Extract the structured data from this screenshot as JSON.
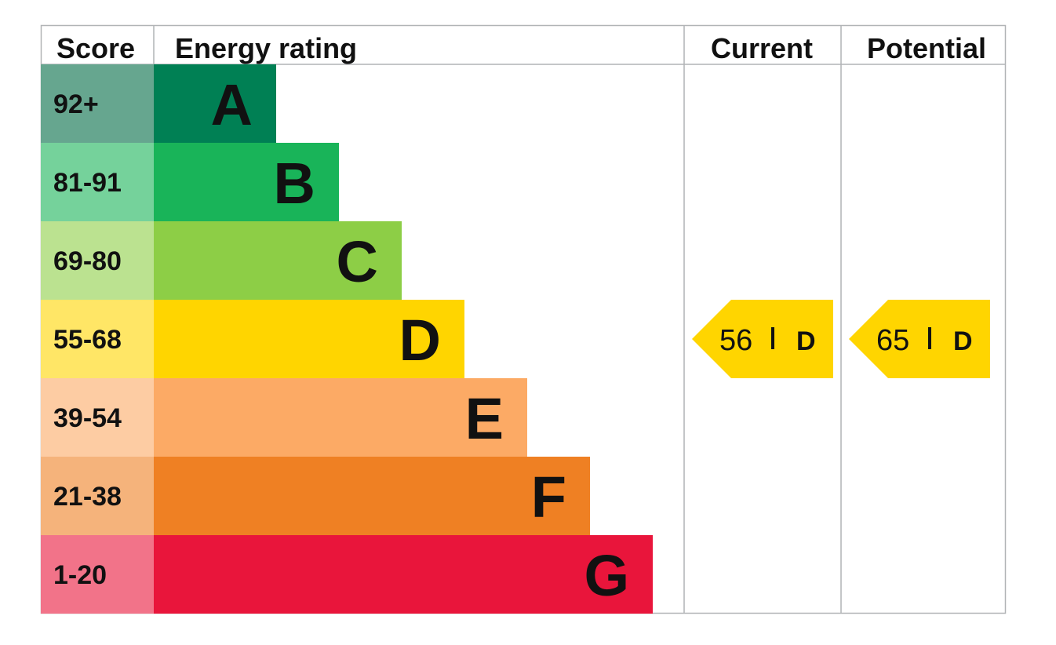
{
  "chart_data": {
    "type": "table",
    "headers": {
      "score": "Score",
      "rating": "Energy rating",
      "current": "Current",
      "potential": "Potential"
    },
    "bands": [
      {
        "score_range": "92+",
        "letter": "A",
        "color": "#008054",
        "score_bg": "#66a68f"
      },
      {
        "score_range": "81-91",
        "letter": "B",
        "color": "#19b459",
        "score_bg": "#75d29b"
      },
      {
        "score_range": "69-80",
        "letter": "C",
        "color": "#8dce46",
        "score_bg": "#bbe290"
      },
      {
        "score_range": "55-68",
        "letter": "D",
        "color": "#ffd500",
        "score_bg": "#ffe666"
      },
      {
        "score_range": "39-54",
        "letter": "E",
        "color": "#fcaa65",
        "score_bg": "#fdcca3"
      },
      {
        "score_range": "21-38",
        "letter": "F",
        "color": "#ef8023",
        "score_bg": "#f5b37b"
      },
      {
        "score_range": "1-20",
        "letter": "G",
        "color": "#e9153b",
        "score_bg": "#f27389"
      }
    ],
    "current": {
      "value": "56",
      "separator": "|",
      "letter": "D",
      "color": "#ffd500"
    },
    "potential": {
      "value": "65",
      "separator": "|",
      "letter": "D",
      "color": "#ffd500"
    },
    "grid_color": "#b1b4b6"
  }
}
